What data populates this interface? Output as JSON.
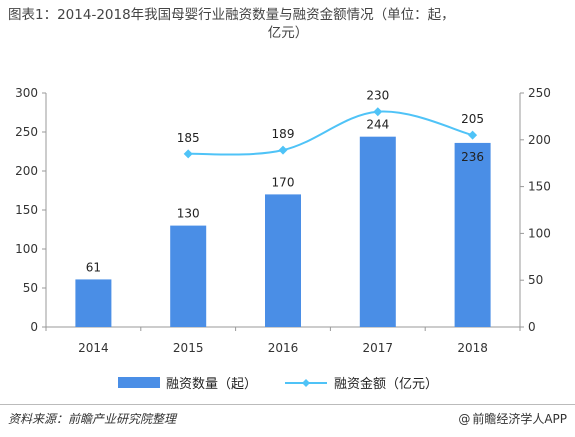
{
  "title": {
    "line1": "图表1：2014-2018年我国母婴行业融资数量与融资金额情况（单位：起，",
    "line2": "亿元）"
  },
  "chart_data": {
    "type": "bar",
    "categories": [
      "2014",
      "2015",
      "2016",
      "2017",
      "2018"
    ],
    "series": [
      {
        "name": "融资数量（起）",
        "type": "bar",
        "axis": "left",
        "values": [
          61,
          130,
          170,
          244,
          236
        ],
        "color": "#4a8ee6"
      },
      {
        "name": "融资金额（亿元）",
        "type": "line",
        "axis": "right",
        "values": [
          null,
          185,
          189,
          230,
          205
        ],
        "color": "#4fc3f7"
      }
    ],
    "y_left": {
      "min": 0,
      "max": 300,
      "ticks": [
        "0",
        "50",
        "100",
        "150",
        "200",
        "250",
        "300"
      ]
    },
    "y_right": {
      "min": 0,
      "max": 250,
      "ticks": [
        "0",
        "50",
        "100",
        "150",
        "200",
        "250"
      ]
    },
    "legend_position": "bottom",
    "grid": false
  },
  "legend": {
    "bar_label": "融资数量（起）",
    "line_label": "融资金额（亿元）"
  },
  "footer": {
    "source": "资料来源：前瞻产业研究院整理",
    "brand_symbol": "@",
    "brand": "前瞻经济学人APP"
  }
}
